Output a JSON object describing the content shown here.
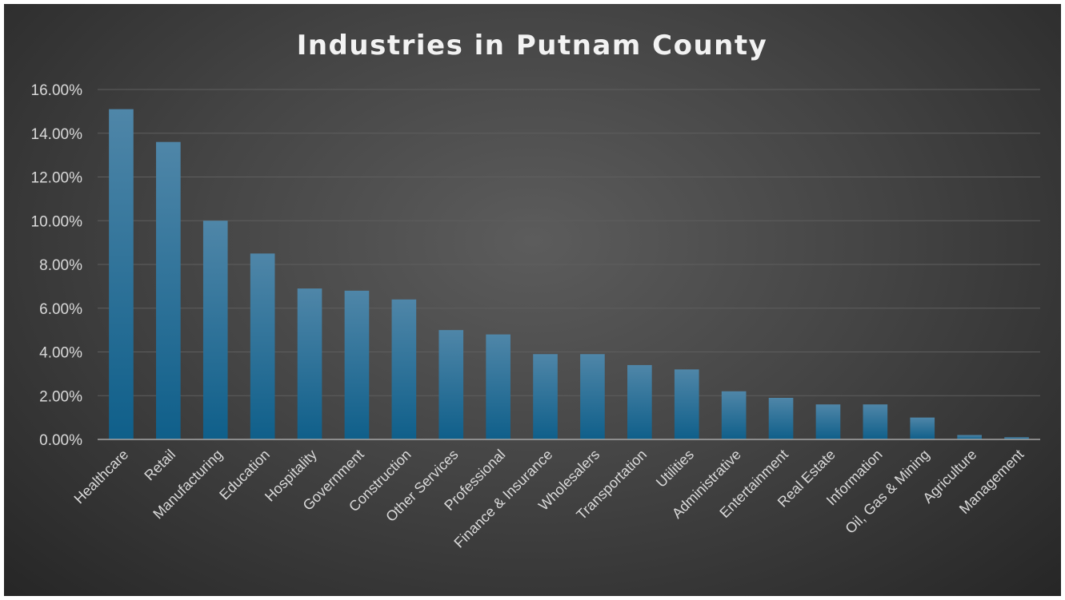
{
  "chart_data": {
    "type": "bar",
    "title": "Industries in Putnam County",
    "xlabel": "",
    "ylabel": "",
    "categories": [
      "Healthcare",
      "Retail",
      "Manufacturing",
      "Education",
      "Hospitality",
      "Government",
      "Construction",
      "Other Services",
      "Professional",
      "Finance & Insurance",
      "Wholesalers",
      "Transportation",
      "Utilities",
      "Administrative",
      "Entertainment",
      "Real Estate",
      "Information",
      "Oil, Gas & Mining",
      "Agriculture",
      "Management"
    ],
    "values": [
      15.1,
      13.6,
      10.0,
      8.5,
      6.9,
      6.8,
      6.4,
      5.0,
      4.8,
      3.9,
      3.9,
      3.4,
      3.2,
      2.2,
      1.9,
      1.6,
      1.6,
      1.0,
      0.2,
      0.1
    ],
    "value_unit": "%",
    "ylim": [
      0,
      16
    ],
    "yticks": [
      "0.00%",
      "2.00%",
      "4.00%",
      "6.00%",
      "8.00%",
      "10.00%",
      "12.00%",
      "14.00%",
      "16.00%"
    ],
    "grid": true,
    "legend": "none",
    "colors": {
      "bar_top": "#4f86a8",
      "bar_bottom": "#0f5f8a",
      "background_center": "#5c5c5c",
      "background_edge": "#262626",
      "text": "#d9d9d9",
      "gridline": "#5e5e5e"
    }
  }
}
